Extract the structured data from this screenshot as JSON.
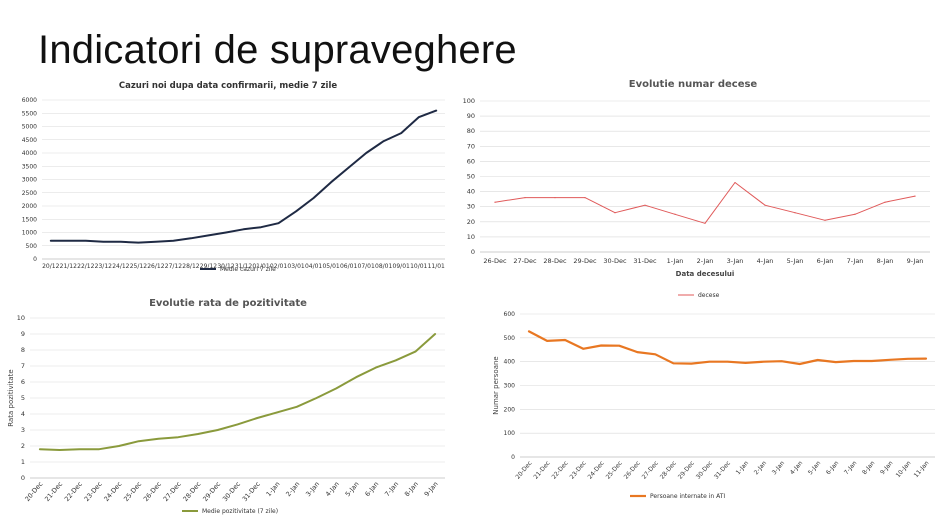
{
  "slide": {
    "title": "Indicatori de supraveghere"
  },
  "chart_data": [
    {
      "id": "c1",
      "type": "line",
      "title": "Cazuri noi dupa data confirmarii, medie 7 zile",
      "xlabel": "",
      "ylabel": "",
      "ylim": [
        0,
        6000
      ],
      "yticks": [
        0,
        500,
        1000,
        1500,
        2000,
        2500,
        3000,
        3500,
        4000,
        4500,
        5000,
        5500,
        6000
      ],
      "grid": true,
      "legend": "bottom",
      "categories": [
        "20/12",
        "21/12",
        "22/12",
        "23/12",
        "24/12",
        "25/12",
        "26/12",
        "27/12",
        "28/12",
        "29/12",
        "30/12",
        "31/12",
        "01/01",
        "02/01",
        "03/01",
        "04/01",
        "05/01",
        "06/01",
        "07/01",
        "08/01",
        "09/01",
        "10/01",
        "11/01"
      ],
      "series": [
        {
          "name": "Medie cazuri 7 zile",
          "color": "#1f2a44",
          "values": [
            690,
            690,
            690,
            650,
            650,
            620,
            650,
            690,
            780,
            890,
            1000,
            1120,
            1200,
            1350,
            1800,
            2300,
            2900,
            3450,
            4000,
            4450,
            4750,
            5350,
            5600
          ]
        }
      ]
    },
    {
      "id": "c2",
      "type": "line",
      "title": "Evolutie numar decese",
      "xlabel": "Data decesului",
      "ylabel": "",
      "ylim": [
        0,
        100
      ],
      "yticks": [
        0,
        10,
        20,
        30,
        40,
        50,
        60,
        70,
        80,
        90,
        100
      ],
      "grid": true,
      "legend": "bottom",
      "categories": [
        "26-Dec",
        "27-Dec",
        "28-Dec",
        "29-Dec",
        "30-Dec",
        "31-Dec",
        "1-Jan",
        "2-Jan",
        "3-Jan",
        "4-Jan",
        "5-Jan",
        "6-Jan",
        "7-Jan",
        "8-Jan",
        "9-Jan"
      ],
      "series": [
        {
          "name": "decese",
          "color": "#e05a5a",
          "values": [
            33,
            36,
            36,
            36,
            26,
            31,
            25,
            19,
            46,
            31,
            26,
            21,
            25,
            33,
            37
          ]
        }
      ]
    },
    {
      "id": "c3",
      "type": "line",
      "title": "Evolutie rata de pozitivitate",
      "xlabel": "",
      "ylabel": "Rata pozitivitate",
      "ylim": [
        0,
        10
      ],
      "yticks": [
        0,
        1,
        2,
        3,
        4,
        5,
        6,
        7,
        8,
        9,
        10
      ],
      "grid": true,
      "legend": "bottom",
      "categories": [
        "20-Dec",
        "21-Dec",
        "22-Dec",
        "23-Dec",
        "24-Dec",
        "25-Dec",
        "26-Dec",
        "27-Dec",
        "28-Dec",
        "29-Dec",
        "30-Dec",
        "31-Dec",
        "1-Jan",
        "2-Jan",
        "3-Jan",
        "4-Jan",
        "5-Jan",
        "6-Jan",
        "7-Jan",
        "8-Jan",
        "9-Jan"
      ],
      "series": [
        {
          "name": "Medie pozitivitate (7 zile)",
          "color": "#8a9a3c",
          "values": [
            1.8,
            1.75,
            1.8,
            1.8,
            2.0,
            2.3,
            2.45,
            2.55,
            2.75,
            3.0,
            3.35,
            3.75,
            4.1,
            4.45,
            5.0,
            5.6,
            6.3,
            6.9,
            7.35,
            7.9,
            9.0
          ]
        }
      ]
    },
    {
      "id": "c4",
      "type": "line",
      "title": "",
      "xlabel": "",
      "ylabel": "Numar persoane",
      "ylim": [
        0,
        600
      ],
      "yticks": [
        0,
        100,
        200,
        300,
        400,
        500,
        600
      ],
      "grid": true,
      "legend": "bottom",
      "categories": [
        "20-Dec",
        "21-Dec",
        "22-Dec",
        "23-Dec",
        "24-Dec",
        "25-Dec",
        "26-Dec",
        "27-Dec",
        "28-Dec",
        "29-Dec",
        "30-Dec",
        "31-Dec",
        "1-Jan",
        "2-Jan",
        "3-Jan",
        "4-Jan",
        "5-Jan",
        "6-Jan",
        "7-Jan",
        "8-Jan",
        "9-Jan",
        "10-Jan",
        "11-Jan"
      ],
      "series": [
        {
          "name": "Persoane internate in ATI",
          "color": "#e87722",
          "values": [
            527,
            487,
            491,
            454,
            468,
            467,
            440,
            431,
            393,
            392,
            400,
            400,
            395,
            400,
            402,
            390,
            407,
            398,
            403,
            403,
            408,
            412,
            413
          ]
        }
      ]
    }
  ]
}
